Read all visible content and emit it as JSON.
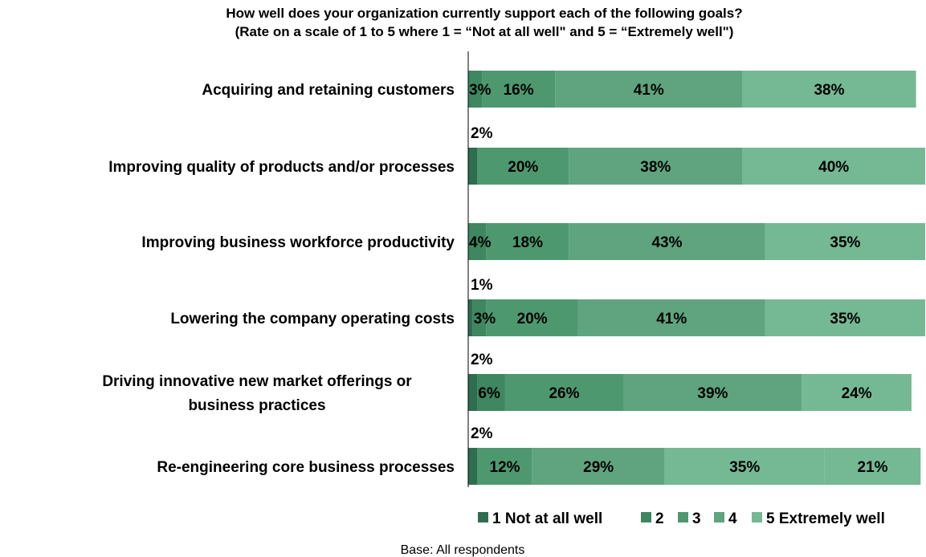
{
  "chart_data": {
    "type": "bar",
    "orientation": "horizontal",
    "stacked": true,
    "title_lines": [
      "How well does your organization currently support each of the following goals?",
      "(Rate on a scale of 1 to 5 where 1 = “Not at all well\" and 5 = “Extremely well\")"
    ],
    "categories": [
      [
        "Acquiring and retaining customers"
      ],
      [
        "Improving quality of products and/or processes"
      ],
      [
        "Improving business workforce productivity"
      ],
      [
        "Lowering the company operating costs"
      ],
      [
        "Driving innovative new market offerings or",
        "business practices"
      ],
      [
        "Re-engineering core business processes"
      ]
    ],
    "series": [
      {
        "name": "1 Not at all well",
        "color": "#2e6e50",
        "values": [
          0,
          2,
          0,
          1,
          2,
          2
        ]
      },
      {
        "name": "2",
        "color": "#3e8760",
        "values": [
          3,
          0,
          4,
          3,
          6,
          0
        ]
      },
      {
        "name": "3",
        "color": "#4e9870",
        "values": [
          16,
          20,
          18,
          20,
          26,
          12
        ]
      },
      {
        "name": "4",
        "color": "#5fa47e",
        "values": [
          41,
          38,
          43,
          41,
          39,
          29
        ]
      },
      {
        "name": "5 Extremely well",
        "color": "#75b894",
        "values": [
          38,
          40,
          35,
          35,
          24,
          35
        ]
      }
    ],
    "trailing_segment": {
      "color": "#75b894",
      "values": [
        0,
        0,
        0,
        0,
        0,
        21
      ]
    },
    "value_format": "{v}%",
    "xlim": [
      0,
      100
    ],
    "legend_position": "bottom-right",
    "footnote": "Base: All respondents"
  }
}
